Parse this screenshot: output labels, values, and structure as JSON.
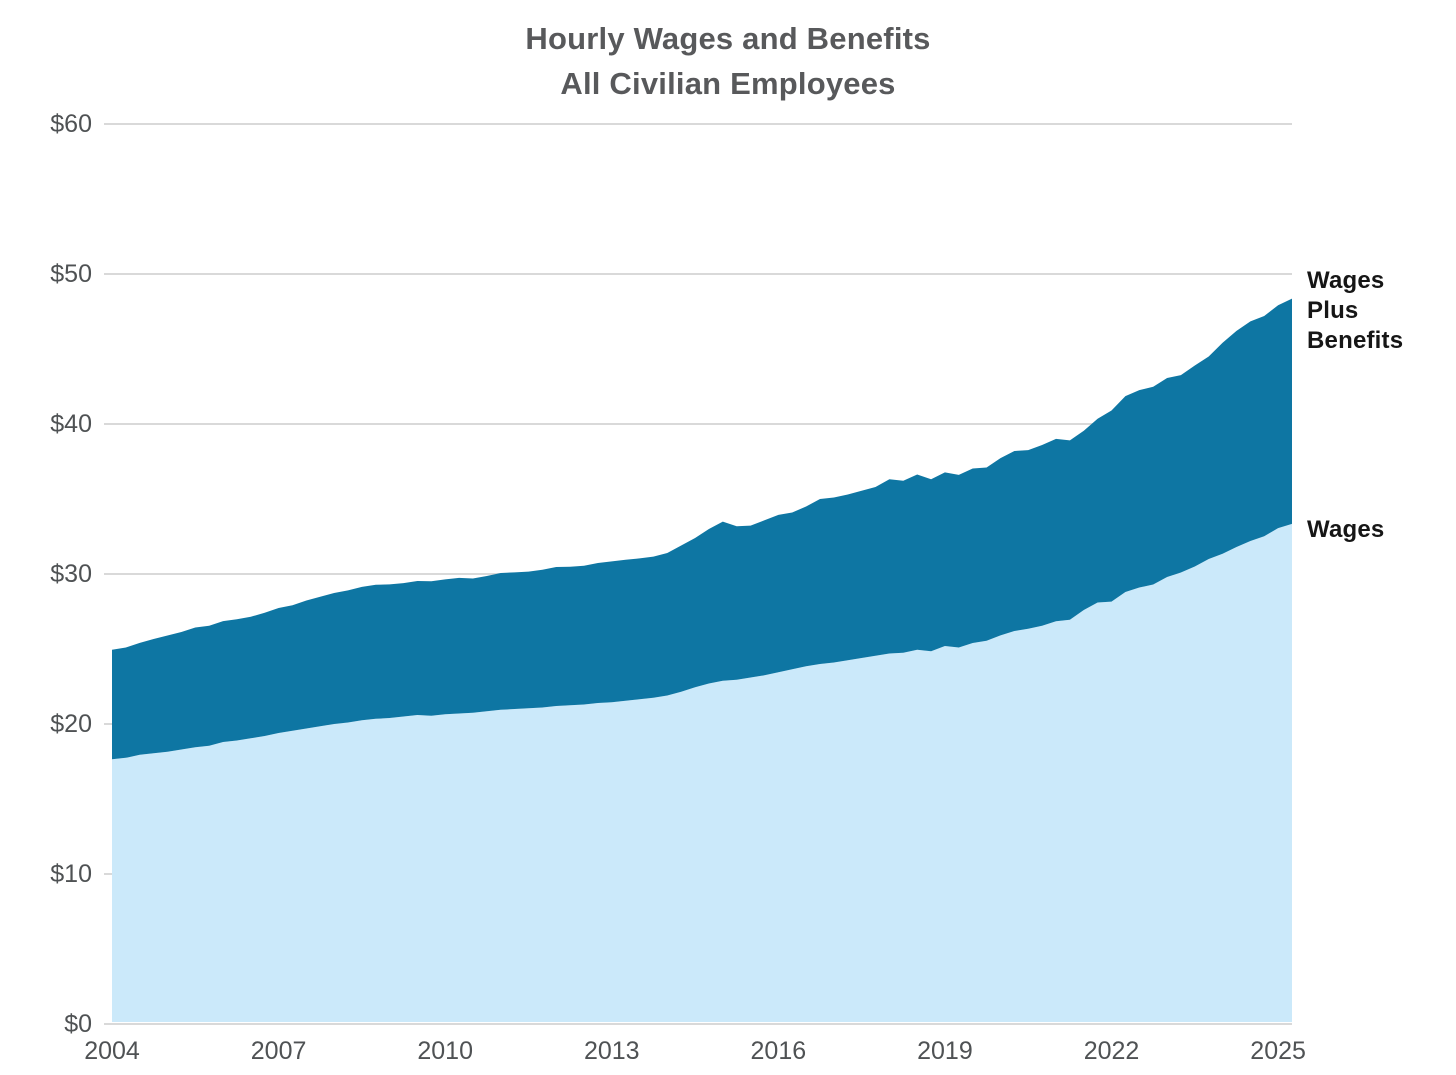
{
  "title": {
    "line1": "Hourly Wages and Benefits",
    "line2": "All Civilian Employees"
  },
  "chart_data": {
    "type": "area",
    "title": "Hourly Wages and Benefits — All Civilian Employees",
    "x_unit": "quarterly",
    "x_start": 2004.0,
    "x_step": 0.25,
    "x_end": 2025.25,
    "xlim": [
      2004.0,
      2025.25
    ],
    "ylim": [
      0,
      60
    ],
    "grid": "horizontal",
    "gridline_color": "#d9d9d9",
    "background_color": "#ffffff",
    "x_tick_years": [
      2004,
      2007,
      2010,
      2013,
      2016,
      2019,
      2022,
      2025
    ],
    "x_tick_labels": [
      "2004",
      "2007",
      "2010",
      "2013",
      "2016",
      "2019",
      "2022",
      "2025"
    ],
    "y_ticks": [
      0,
      10,
      20,
      30,
      40,
      50,
      60
    ],
    "y_tick_labels": [
      "$0",
      "$10",
      "$20",
      "$30",
      "$40",
      "$50",
      "$60"
    ],
    "series": [
      {
        "name": "Wages",
        "color": "#cbe9fa",
        "values": [
          17.65,
          17.75,
          17.95,
          18.05,
          18.15,
          18.3,
          18.45,
          18.55,
          18.8,
          18.9,
          19.05,
          19.2,
          19.4,
          19.55,
          19.7,
          19.85,
          20.0,
          20.1,
          20.25,
          20.35,
          20.4,
          20.5,
          20.6,
          20.55,
          20.65,
          20.7,
          20.75,
          20.85,
          20.95,
          21.0,
          21.05,
          21.1,
          21.2,
          21.25,
          21.3,
          21.4,
          21.45,
          21.55,
          21.65,
          21.75,
          21.9,
          22.15,
          22.45,
          22.7,
          22.88,
          22.95,
          23.1,
          23.25,
          23.45,
          23.65,
          23.85,
          24.0,
          24.1,
          24.25,
          24.4,
          24.55,
          24.7,
          24.75,
          24.95,
          24.85,
          25.2,
          25.1,
          25.4,
          25.55,
          25.91,
          26.2,
          26.35,
          26.55,
          26.85,
          26.95,
          27.6,
          28.1,
          28.16,
          28.8,
          29.1,
          29.3,
          29.8,
          30.1,
          30.5,
          31.0,
          31.35,
          31.8,
          32.2,
          32.52,
          33.06,
          33.34
        ]
      },
      {
        "name": "Wages Plus Benefits",
        "color": "#0e76a3",
        "values": [
          24.95,
          25.1,
          25.41,
          25.67,
          25.9,
          26.13,
          26.43,
          26.55,
          26.86,
          26.99,
          27.15,
          27.42,
          27.73,
          27.92,
          28.23,
          28.48,
          28.73,
          28.91,
          29.14,
          29.28,
          29.31,
          29.39,
          29.53,
          29.52,
          29.64,
          29.74,
          29.7,
          29.87,
          30.07,
          30.11,
          30.16,
          30.28,
          30.47,
          30.49,
          30.55,
          30.73,
          30.84,
          30.95,
          31.04,
          31.16,
          31.4,
          31.9,
          32.4,
          33.0,
          33.49,
          33.19,
          33.23,
          33.58,
          33.94,
          34.1,
          34.5,
          35.0,
          35.1,
          35.3,
          35.55,
          35.8,
          36.32,
          36.22,
          36.63,
          36.32,
          36.77,
          36.61,
          37.03,
          37.1,
          37.73,
          38.2,
          38.26,
          38.6,
          39.01,
          38.91,
          39.55,
          40.35,
          40.9,
          41.86,
          42.26,
          42.48,
          43.07,
          43.26,
          43.9,
          44.5,
          45.42,
          46.21,
          46.84,
          47.2,
          47.92,
          48.36
        ]
      }
    ],
    "annotations": [
      {
        "text": "Wages\nPlus\nBenefits",
        "series": "Wages Plus Benefits"
      },
      {
        "text": "Wages",
        "series": "Wages"
      }
    ],
    "legend_position": "right-of-plot"
  },
  "colors": {
    "wages_area": "#cbe9fa",
    "benefits_area": "#0e76a3",
    "title_text": "#58595b",
    "axis_text": "#4f5254",
    "gridline": "#d9d9d9"
  }
}
